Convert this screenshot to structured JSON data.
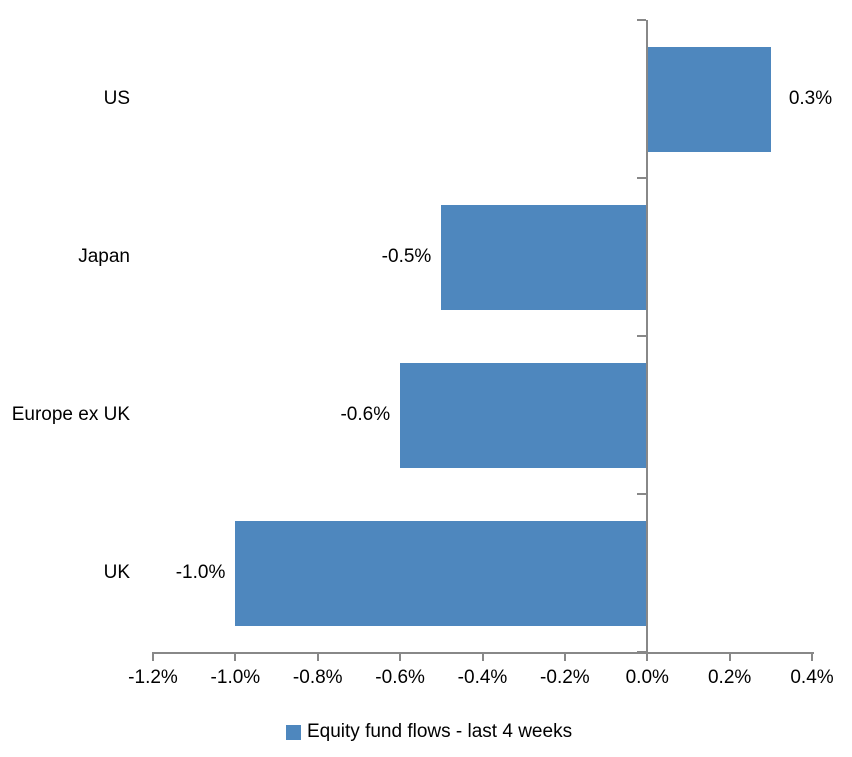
{
  "chart_data": {
    "type": "bar",
    "orientation": "horizontal",
    "title": "",
    "categories": [
      "US",
      "Japan",
      "Europe ex UK",
      "UK"
    ],
    "series": [
      {
        "name": "Equity fund flows - last 4 weeks",
        "values": [
          0.3,
          -0.5,
          -0.6,
          -1.0
        ],
        "labels": [
          "0.3%",
          "-0.5%",
          "-0.6%",
          "-1.0%"
        ]
      }
    ],
    "xlim": [
      -1.2,
      0.4
    ],
    "x_ticks": [
      {
        "value": -1.2,
        "label": "-1.2%"
      },
      {
        "value": -1.0,
        "label": "-1.0%"
      },
      {
        "value": -0.8,
        "label": "-0.8%"
      },
      {
        "value": -0.6,
        "label": "-0.6%"
      },
      {
        "value": -0.4,
        "label": "-0.4%"
      },
      {
        "value": -0.2,
        "label": "-0.2%"
      },
      {
        "value": 0.0,
        "label": "0.0%"
      },
      {
        "value": 0.2,
        "label": "0.2%"
      },
      {
        "value": 0.4,
        "label": "0.4%"
      }
    ],
    "grid": false,
    "legend": {
      "position": "bottom",
      "label": "Equity fund flows - last 4 weeks"
    },
    "colors": {
      "bar": "#4E87BE",
      "axis": "#888888",
      "text": "#000000",
      "background": "#FFFFFF"
    }
  }
}
